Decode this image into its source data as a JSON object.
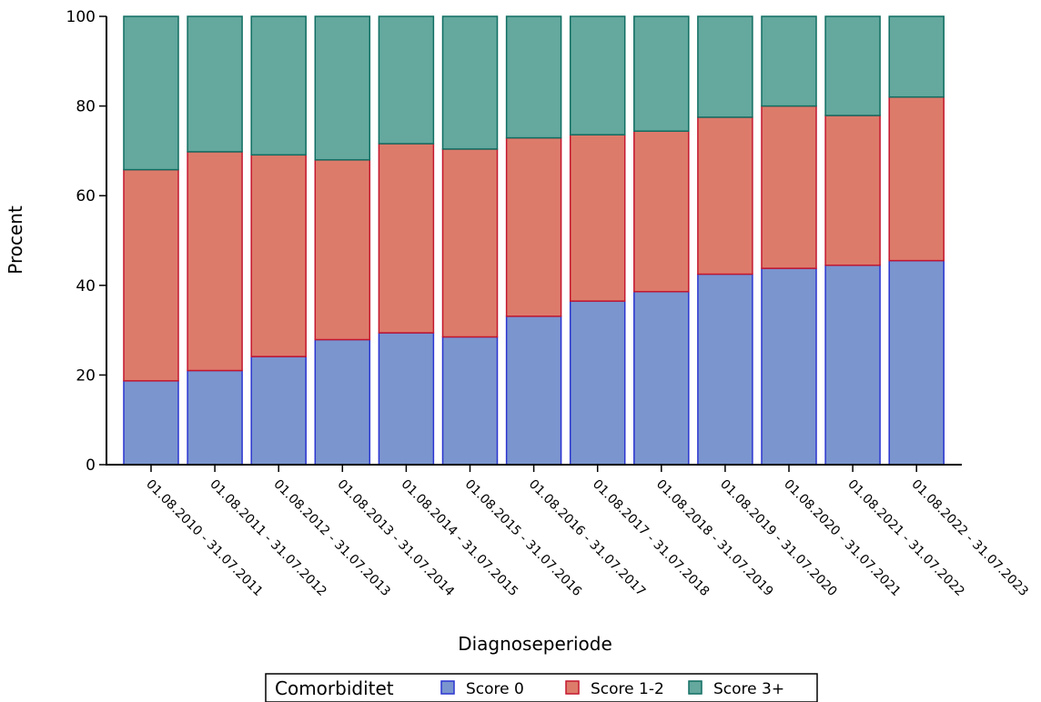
{
  "chart_data": {
    "type": "bar",
    "stacked": true,
    "xlabel": "Diagnoseperiode",
    "ylabel": "Procent",
    "ylim": [
      0,
      100
    ],
    "yticks": [
      0,
      20,
      40,
      60,
      80,
      100
    ],
    "grid": false,
    "legend_position": "bottom",
    "legend_title": "Comorbiditet",
    "categories": [
      "01.08.2010 - 31.07.2011",
      "01.08.2011 - 31.07.2012",
      "01.08.2012 - 31.07.2013",
      "01.08.2013 - 31.07.2014",
      "01.08.2014 - 31.07.2015",
      "01.08.2015 - 31.07.2016",
      "01.08.2016 - 31.07.2017",
      "01.08.2017 - 31.07.2018",
      "01.08.2018 - 31.07.2019",
      "01.08.2019 - 31.07.2020",
      "01.08.2020 - 31.07.2021",
      "01.08.2021 - 31.07.2022",
      "01.08.2022 - 31.07.2023"
    ],
    "series": [
      {
        "name": "Score 0",
        "color": "#7b95cf",
        "stroke": "#2b35d0",
        "values": [
          18.7,
          21.0,
          24.1,
          27.9,
          29.4,
          28.5,
          33.1,
          36.5,
          38.6,
          42.5,
          43.8,
          44.5,
          45.5
        ]
      },
      {
        "name": "Score 1-2",
        "color": "#dd7b6b",
        "stroke": "#c4172e",
        "values": [
          47.1,
          48.8,
          45.0,
          40.1,
          42.2,
          41.9,
          39.8,
          37.1,
          35.8,
          35.0,
          36.2,
          33.4,
          36.5
        ]
      },
      {
        "name": "Score 3+",
        "color": "#64a89e",
        "stroke": "#106e62",
        "values": [
          34.2,
          30.2,
          30.9,
          32.0,
          28.4,
          29.6,
          27.1,
          26.4,
          25.6,
          22.5,
          20.0,
          22.1,
          18.0
        ]
      }
    ]
  }
}
